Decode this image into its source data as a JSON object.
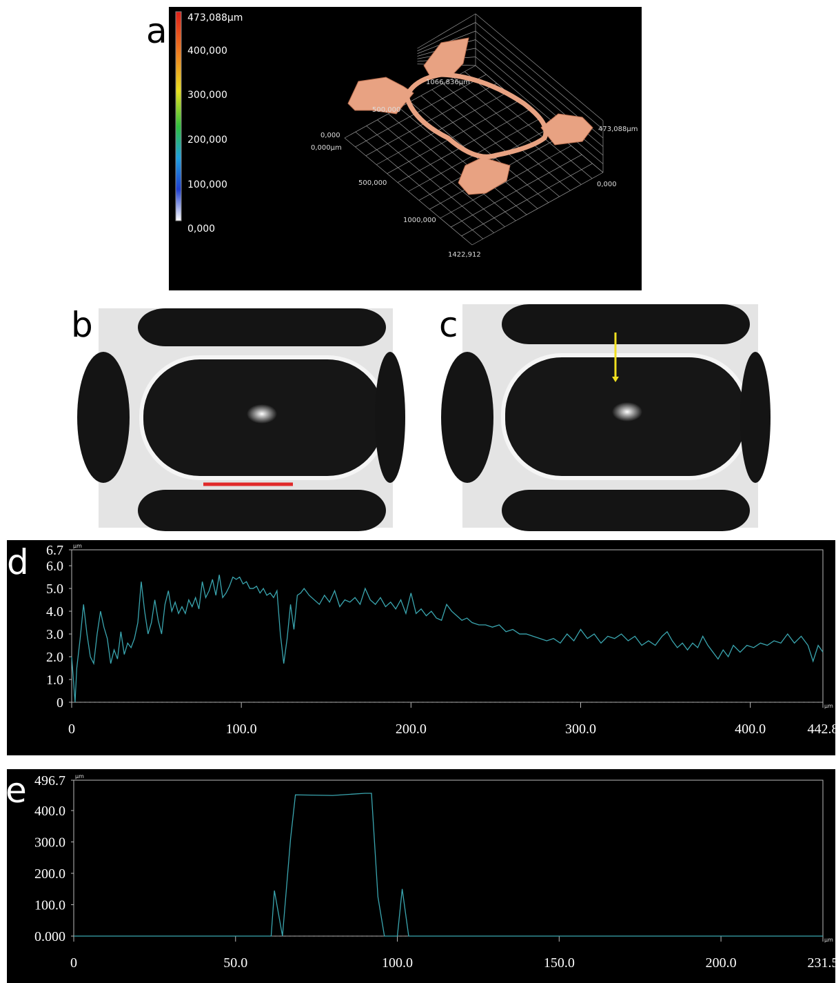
{
  "panel_a": {
    "label": "a",
    "colorbar_labels": [
      "473,088µm",
      "400,000",
      "300,000",
      "200,000",
      "100,000",
      "0,000"
    ],
    "axis_labels": [
      "1066,836µm",
      "500,000",
      "0,000",
      "0,000µm",
      "500,000",
      "1000,000",
      "1422,912",
      "473,088µm",
      "0,000"
    ]
  },
  "panel_b": {
    "label": "b"
  },
  "panel_c": {
    "label": "c"
  },
  "chart_data": [
    {
      "type": "line",
      "label": "d",
      "color": "#3aa6b0",
      "x_unit": "µm",
      "y_unit": "µm",
      "xlim": [
        0,
        442.8
      ],
      "ylim": [
        0,
        6.7
      ],
      "xticks": [
        0,
        {
          "value": 100,
          "label": "100.0"
        },
        {
          "value": 200,
          "label": "200.0"
        },
        {
          "value": 300,
          "label": "300.0"
        },
        {
          "value": 400,
          "label": "400.0"
        },
        442.8
      ],
      "yticks": [
        0,
        {
          "value": 1,
          "label": "1.0"
        },
        {
          "value": 2,
          "label": "2.0"
        },
        {
          "value": 3,
          "label": "3.0"
        },
        {
          "value": 4,
          "label": "4.0"
        },
        {
          "value": 5,
          "label": "5.0"
        },
        {
          "value": 6,
          "label": "6.0"
        },
        6.7
      ],
      "x": [
        0,
        1,
        2,
        3,
        5,
        7,
        9,
        11,
        13,
        15,
        17,
        19,
        21,
        23,
        25,
        27,
        29,
        31,
        33,
        35,
        37,
        39,
        41,
        43,
        45,
        47,
        49,
        51,
        53,
        55,
        57,
        59,
        61,
        63,
        65,
        67,
        69,
        71,
        73,
        75,
        77,
        79,
        81,
        83,
        85,
        87,
        89,
        91,
        93,
        95,
        97,
        99,
        101,
        103,
        105,
        107,
        109,
        111,
        113,
        115,
        117,
        119,
        121,
        123,
        125,
        127,
        129,
        131,
        133,
        135,
        137,
        140,
        143,
        146,
        149,
        152,
        155,
        158,
        161,
        164,
        167,
        170,
        173,
        176,
        179,
        182,
        185,
        188,
        191,
        194,
        197,
        200,
        203,
        206,
        209,
        212,
        215,
        218,
        221,
        224,
        227,
        230,
        233,
        236,
        240,
        244,
        248,
        252,
        256,
        260,
        264,
        268,
        272,
        276,
        280,
        284,
        288,
        292,
        296,
        300,
        304,
        308,
        312,
        316,
        320,
        324,
        328,
        332,
        336,
        340,
        344,
        348,
        351,
        354,
        357,
        360,
        363,
        366,
        369,
        372,
        375,
        378,
        381,
        384,
        387,
        390,
        394,
        398,
        402,
        406,
        410,
        414,
        418,
        422,
        426,
        430,
        434,
        437,
        440,
        442.8
      ],
      "values": [
        2.0,
        1.0,
        0.0,
        1.5,
        2.8,
        4.3,
        3.0,
        2.0,
        1.7,
        3.0,
        4.0,
        3.3,
        2.8,
        1.7,
        2.3,
        1.9,
        3.1,
        2.1,
        2.6,
        2.4,
        2.8,
        3.5,
        5.3,
        4.0,
        3.0,
        3.5,
        4.5,
        3.6,
        3.0,
        4.3,
        4.9,
        4.0,
        4.4,
        3.9,
        4.2,
        3.9,
        4.5,
        4.2,
        4.6,
        4.1,
        5.3,
        4.6,
        4.9,
        5.4,
        4.7,
        5.6,
        4.6,
        4.8,
        5.1,
        5.5,
        5.4,
        5.5,
        5.2,
        5.3,
        5.0,
        5.0,
        5.1,
        4.8,
        5.0,
        4.7,
        4.8,
        4.6,
        4.9,
        3.0,
        1.7,
        2.8,
        4.3,
        3.2,
        4.7,
        4.8,
        5.0,
        4.7,
        4.5,
        4.3,
        4.7,
        4.4,
        4.9,
        4.2,
        4.5,
        4.4,
        4.6,
        4.3,
        5.0,
        4.5,
        4.3,
        4.6,
        4.2,
        4.4,
        4.1,
        4.5,
        3.9,
        4.8,
        3.9,
        4.1,
        3.8,
        4.0,
        3.7,
        3.6,
        4.3,
        4.0,
        3.8,
        3.6,
        3.7,
        3.5,
        3.4,
        3.4,
        3.3,
        3.4,
        3.1,
        3.2,
        3.0,
        3.0,
        2.9,
        2.8,
        2.7,
        2.8,
        2.6,
        3.0,
        2.7,
        3.2,
        2.8,
        3.0,
        2.6,
        2.9,
        2.8,
        3.0,
        2.7,
        2.9,
        2.5,
        2.7,
        2.5,
        2.9,
        3.1,
        2.7,
        2.4,
        2.6,
        2.3,
        2.6,
        2.4,
        2.9,
        2.5,
        2.2,
        1.9,
        2.3,
        2.0,
        2.5,
        2.2,
        2.5,
        2.4,
        2.6,
        2.5,
        2.7,
        2.6,
        3.0,
        2.6,
        2.9,
        2.5,
        1.8,
        2.5,
        2.2
      ]
    },
    {
      "type": "line",
      "label": "e",
      "color": "#3aa6b0",
      "x_unit": "µm",
      "y_unit": "µm",
      "xlim": [
        0,
        231.5
      ],
      "ylim": [
        0,
        496.7
      ],
      "xticks": [
        0,
        {
          "value": 50,
          "label": "50.0"
        },
        {
          "value": 100,
          "label": "100.0"
        },
        {
          "value": 150,
          "label": "150.0"
        },
        {
          "value": 200,
          "label": "200.0"
        },
        231.5
      ],
      "yticks": [
        {
          "value": 0,
          "label": "0.000"
        },
        {
          "value": 100,
          "label": "100.0"
        },
        {
          "value": 200,
          "label": "200.0"
        },
        {
          "value": 300,
          "label": "300.0"
        },
        {
          "value": 400,
          "label": "400.0"
        },
        496.7
      ],
      "x": [
        0,
        61,
        62,
        64.5,
        67,
        68.5,
        80,
        90,
        92,
        94,
        96,
        100,
        101.5,
        103.5,
        231.5
      ],
      "values": [
        0,
        0,
        145,
        0,
        310,
        450,
        448,
        455,
        455,
        125,
        0,
        0,
        150,
        0,
        0
      ]
    }
  ]
}
